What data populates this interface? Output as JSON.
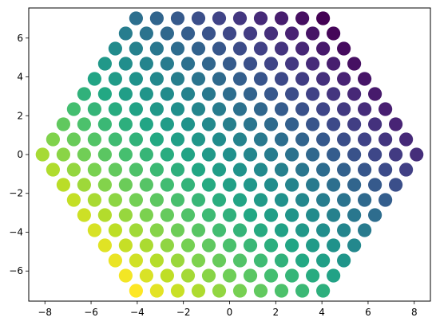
{
  "chart_data": {
    "type": "scatter",
    "title": "",
    "xlabel": "",
    "ylabel": "",
    "xlim": [
      -8.7,
      8.7
    ],
    "ylim": [
      -7.55,
      7.55
    ],
    "x_ticks": [
      -8,
      -6,
      -4,
      -2,
      0,
      2,
      4,
      6,
      8
    ],
    "y_ticks": [
      -6,
      -4,
      -2,
      0,
      2,
      4,
      6
    ],
    "x_tick_labels": [
      "−8",
      "−6",
      "−4",
      "−2",
      "0",
      "2",
      "4",
      "6",
      "8"
    ],
    "y_tick_labels": [
      "−6",
      "−4",
      "−2",
      "0",
      "2",
      "4",
      "6"
    ],
    "grid": false,
    "legend": "none",
    "layout_description": "hexagonal lattice of points, 10 points per side; x spacing 0.9, row spacing 0.7794",
    "points": {
      "hex_side": 10,
      "x_spacing": 0.9,
      "row_spacing": 0.7794,
      "center": [
        0,
        0
      ]
    },
    "colormap": "viridis",
    "color_value": "(y - x) increasing toward lower-left (yellow) to upper-right (purple)",
    "colors": {
      "low": "#440154",
      "high": "#fde725",
      "axis": "#000000",
      "background": "#ffffff"
    }
  }
}
